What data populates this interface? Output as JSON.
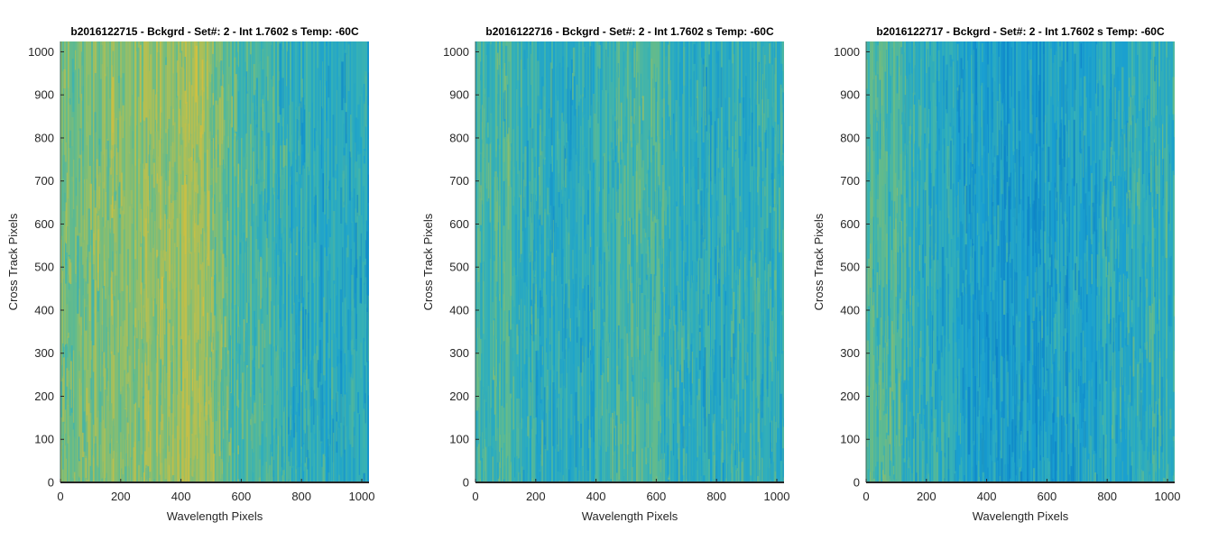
{
  "chart_data": [
    {
      "type": "heatmap",
      "title": "b2016122715 - Bckgrd - Set#: 2 - Int 1.7602 s Temp: -60C",
      "xlabel": "Wavelength Pixels",
      "ylabel": "Cross Track Pixels",
      "xlim": [
        0,
        1024
      ],
      "ylim": [
        0,
        1024
      ],
      "xticks": [
        0,
        200,
        400,
        600,
        800,
        1000
      ],
      "yticks": [
        0,
        100,
        200,
        300,
        400,
        500,
        600,
        700,
        800,
        900,
        1000
      ],
      "colormap": [
        "#0c82c8",
        "#1aa0d0",
        "#38b2b4",
        "#6abc86",
        "#a8bf5a",
        "#d6bf3c"
      ],
      "column_level_profile": [
        {
          "x": 0,
          "level": 0.62
        },
        {
          "x": 100,
          "level": 0.66
        },
        {
          "x": 200,
          "level": 0.7
        },
        {
          "x": 300,
          "level": 0.72
        },
        {
          "x": 400,
          "level": 0.78
        },
        {
          "x": 450,
          "level": 0.82
        },
        {
          "x": 500,
          "level": 0.66
        },
        {
          "x": 600,
          "level": 0.5
        },
        {
          "x": 700,
          "level": 0.42
        },
        {
          "x": 800,
          "level": 0.34
        },
        {
          "x": 900,
          "level": 0.3
        },
        {
          "x": 1024,
          "level": 0.26
        }
      ]
    },
    {
      "type": "heatmap",
      "title": "b2016122716 - Bckgrd - Set#: 2 - Int 1.7602 s Temp: -60C",
      "xlabel": "Wavelength Pixels",
      "ylabel": "Cross Track Pixels",
      "xlim": [
        0,
        1024
      ],
      "ylim": [
        0,
        1024
      ],
      "xticks": [
        0,
        200,
        400,
        600,
        800,
        1000
      ],
      "yticks": [
        0,
        100,
        200,
        300,
        400,
        500,
        600,
        700,
        800,
        900,
        1000
      ],
      "colormap": [
        "#0c82c8",
        "#1aa0d0",
        "#38b2b4",
        "#6abc86",
        "#a8bf5a",
        "#d6bf3c"
      ],
      "column_level_profile": [
        {
          "x": 0,
          "level": 0.48
        },
        {
          "x": 100,
          "level": 0.44
        },
        {
          "x": 200,
          "level": 0.36
        },
        {
          "x": 300,
          "level": 0.32
        },
        {
          "x": 400,
          "level": 0.36
        },
        {
          "x": 500,
          "level": 0.46
        },
        {
          "x": 550,
          "level": 0.5
        },
        {
          "x": 650,
          "level": 0.38
        },
        {
          "x": 750,
          "level": 0.32
        },
        {
          "x": 850,
          "level": 0.36
        },
        {
          "x": 950,
          "level": 0.4
        },
        {
          "x": 1024,
          "level": 0.36
        }
      ]
    },
    {
      "type": "heatmap",
      "title": "b2016122717 - Bckgrd - Set#: 2 - Int 1.7602 s Temp: -60C",
      "xlabel": "Wavelength Pixels",
      "ylabel": "Cross Track Pixels",
      "xlim": [
        0,
        1024
      ],
      "ylim": [
        0,
        1024
      ],
      "xticks": [
        0,
        200,
        400,
        600,
        800,
        1000
      ],
      "yticks": [
        0,
        100,
        200,
        300,
        400,
        500,
        600,
        700,
        800,
        900,
        1000
      ],
      "colormap": [
        "#0c82c8",
        "#1aa0d0",
        "#38b2b4",
        "#6abc86",
        "#a8bf5a",
        "#d6bf3c"
      ],
      "column_level_profile": [
        {
          "x": 0,
          "level": 0.5
        },
        {
          "x": 100,
          "level": 0.44
        },
        {
          "x": 200,
          "level": 0.34
        },
        {
          "x": 300,
          "level": 0.24
        },
        {
          "x": 400,
          "level": 0.2
        },
        {
          "x": 500,
          "level": 0.2
        },
        {
          "x": 600,
          "level": 0.22
        },
        {
          "x": 700,
          "level": 0.24
        },
        {
          "x": 800,
          "level": 0.3
        },
        {
          "x": 900,
          "level": 0.36
        },
        {
          "x": 1024,
          "level": 0.38
        }
      ]
    }
  ]
}
